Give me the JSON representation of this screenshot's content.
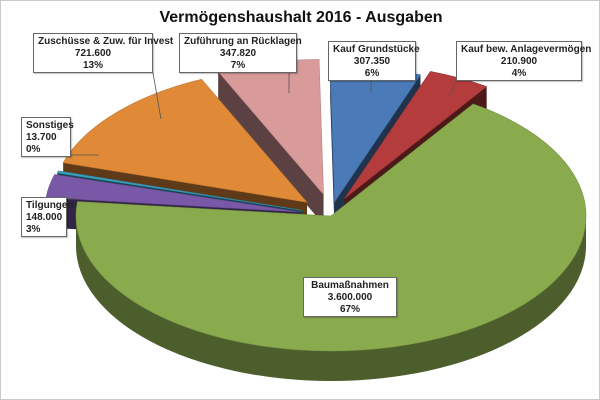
{
  "chart_data": {
    "type": "pie",
    "title": "Vermögenshaushalt 2016 - Ausgaben",
    "slices": [
      {
        "name": "Kauf Grundstücke",
        "value": 307350,
        "value_label": "307.350",
        "percent_label": "6%",
        "color": "#4a7ab8"
      },
      {
        "name": "Kauf bew. Anlagevermögen",
        "value": 210900,
        "value_label": "210.900",
        "percent_label": "4%",
        "color": "#b43c3c"
      },
      {
        "name": "Baumaßnahmen",
        "value": 3600000,
        "value_label": "3.600.000",
        "percent_label": "67%",
        "color": "#8aaa4e"
      },
      {
        "name": "Tilgungen",
        "value": 148000,
        "value_label": "148.000",
        "percent_label": "3%",
        "color": "#7a58a8"
      },
      {
        "name": "Sonstiges",
        "value": 13700,
        "value_label": "13.700",
        "percent_label": "0%",
        "color": "#3aa0c0"
      },
      {
        "name": "Zuschüsse & Zuw. für Invest",
        "value": 721600,
        "value_label": "721.600",
        "percent_label": "13%",
        "color": "#e08a38"
      },
      {
        "name": "Zuführung an Rücklagen",
        "value": 347820,
        "value_label": "347.820",
        "percent_label": "7%",
        "color": "#d99a9a"
      }
    ],
    "exploded": true,
    "style": "3d",
    "legend": "none"
  }
}
